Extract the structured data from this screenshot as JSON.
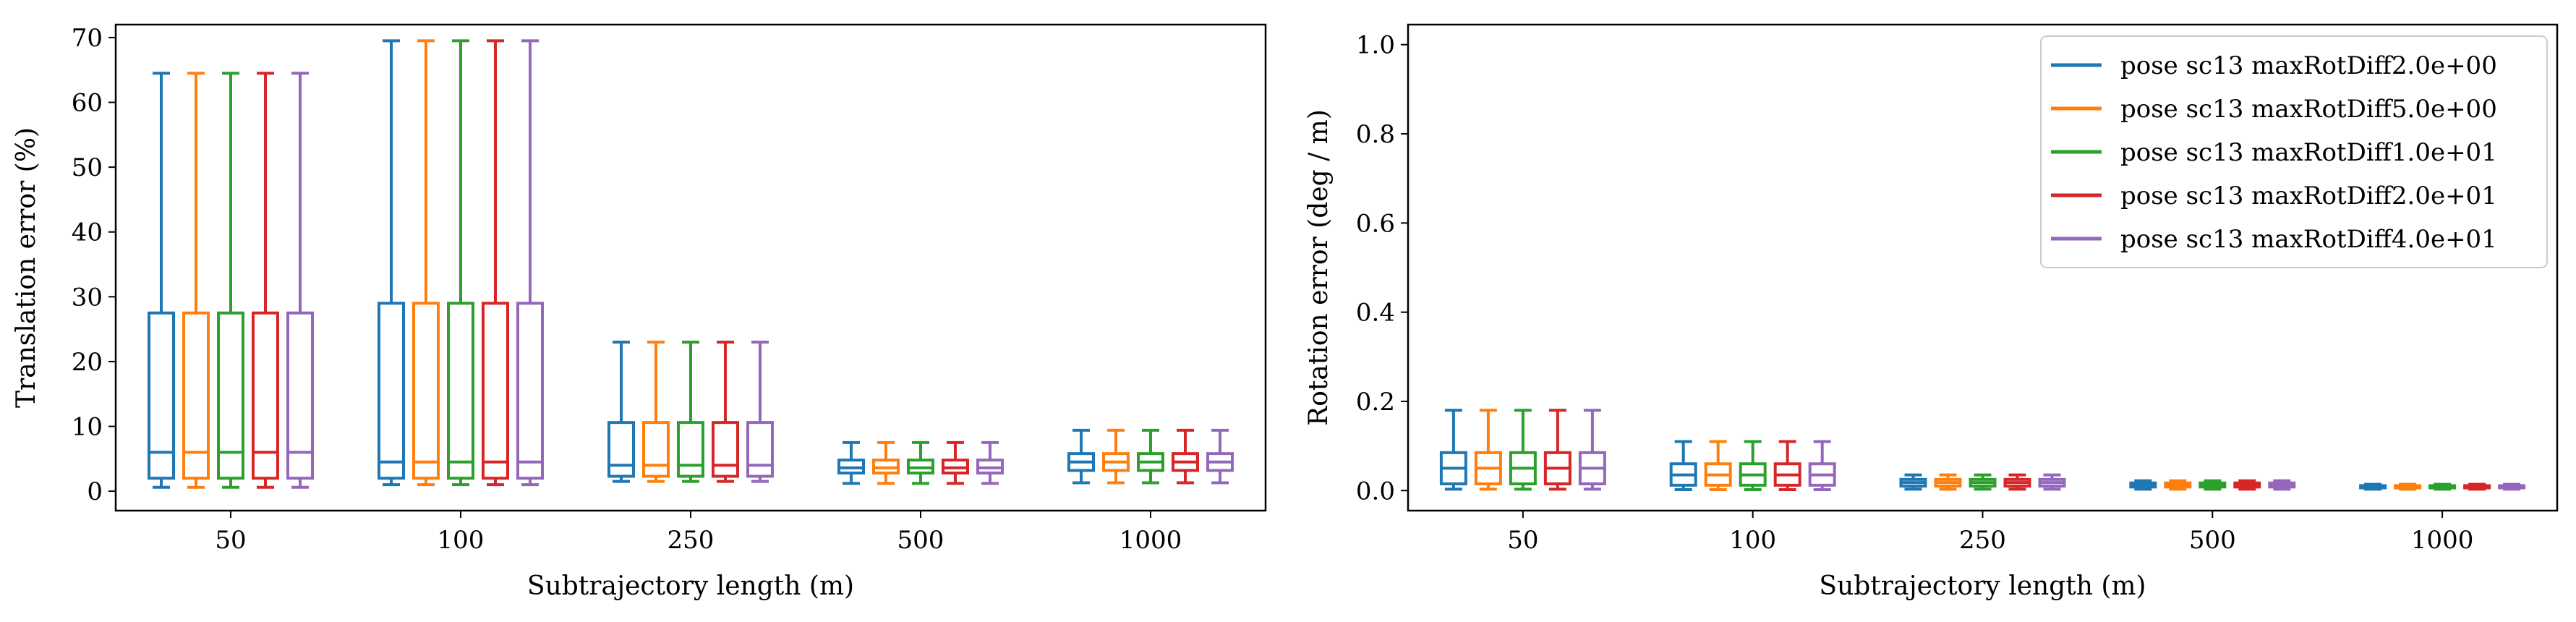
{
  "chart_data": [
    {
      "type": "box",
      "xlabel": "Subtrajectory length (m)",
      "ylabel": "Translation error (%)",
      "categories": [
        "50",
        "100",
        "250",
        "500",
        "1000"
      ],
      "ylim": [
        -3,
        72
      ],
      "yticks": [
        0,
        10,
        20,
        30,
        40,
        50,
        60,
        70
      ],
      "legend": false,
      "series": [
        {
          "name": "pose sc13 maxRotDiff2.0e+00",
          "color": "#1f77b4",
          "boxes": [
            {
              "whislo": 0.6,
              "q1": 2.0,
              "med": 6.0,
              "q3": 27.5,
              "whishi": 64.5
            },
            {
              "whislo": 1.0,
              "q1": 2.0,
              "med": 4.5,
              "q3": 29.0,
              "whishi": 69.5
            },
            {
              "whislo": 1.5,
              "q1": 2.3,
              "med": 4.0,
              "q3": 10.6,
              "whishi": 23.0
            },
            {
              "whislo": 1.2,
              "q1": 2.8,
              "med": 3.6,
              "q3": 4.8,
              "whishi": 7.5
            },
            {
              "whislo": 1.3,
              "q1": 3.2,
              "med": 4.5,
              "q3": 5.8,
              "whishi": 9.4
            }
          ]
        },
        {
          "name": "pose sc13 maxRotDiff5.0e+00",
          "color": "#ff7f0e",
          "boxes": [
            {
              "whislo": 0.6,
              "q1": 2.0,
              "med": 6.0,
              "q3": 27.5,
              "whishi": 64.5
            },
            {
              "whislo": 1.0,
              "q1": 2.0,
              "med": 4.5,
              "q3": 29.0,
              "whishi": 69.5
            },
            {
              "whislo": 1.5,
              "q1": 2.3,
              "med": 4.0,
              "q3": 10.6,
              "whishi": 23.0
            },
            {
              "whislo": 1.2,
              "q1": 2.8,
              "med": 3.6,
              "q3": 4.8,
              "whishi": 7.5
            },
            {
              "whislo": 1.3,
              "q1": 3.2,
              "med": 4.5,
              "q3": 5.8,
              "whishi": 9.4
            }
          ]
        },
        {
          "name": "pose sc13 maxRotDiff1.0e+01",
          "color": "#2ca02c",
          "boxes": [
            {
              "whislo": 0.6,
              "q1": 2.0,
              "med": 6.0,
              "q3": 27.5,
              "whishi": 64.5
            },
            {
              "whislo": 1.0,
              "q1": 2.0,
              "med": 4.5,
              "q3": 29.0,
              "whishi": 69.5
            },
            {
              "whislo": 1.5,
              "q1": 2.3,
              "med": 4.0,
              "q3": 10.6,
              "whishi": 23.0
            },
            {
              "whislo": 1.2,
              "q1": 2.8,
              "med": 3.6,
              "q3": 4.8,
              "whishi": 7.5
            },
            {
              "whislo": 1.3,
              "q1": 3.2,
              "med": 4.5,
              "q3": 5.8,
              "whishi": 9.4
            }
          ]
        },
        {
          "name": "pose sc13 maxRotDiff2.0e+01",
          "color": "#d62728",
          "boxes": [
            {
              "whislo": 0.6,
              "q1": 2.0,
              "med": 6.0,
              "q3": 27.5,
              "whishi": 64.5
            },
            {
              "whislo": 1.0,
              "q1": 2.0,
              "med": 4.5,
              "q3": 29.0,
              "whishi": 69.5
            },
            {
              "whislo": 1.5,
              "q1": 2.3,
              "med": 4.0,
              "q3": 10.6,
              "whishi": 23.0
            },
            {
              "whislo": 1.2,
              "q1": 2.8,
              "med": 3.6,
              "q3": 4.8,
              "whishi": 7.5
            },
            {
              "whislo": 1.3,
              "q1": 3.2,
              "med": 4.5,
              "q3": 5.8,
              "whishi": 9.4
            }
          ]
        },
        {
          "name": "pose sc13 maxRotDiff4.0e+01",
          "color": "#9467bd",
          "boxes": [
            {
              "whislo": 0.6,
              "q1": 2.0,
              "med": 6.0,
              "q3": 27.5,
              "whishi": 64.5
            },
            {
              "whislo": 1.0,
              "q1": 2.0,
              "med": 4.5,
              "q3": 29.0,
              "whishi": 69.5
            },
            {
              "whislo": 1.5,
              "q1": 2.3,
              "med": 4.0,
              "q3": 10.6,
              "whishi": 23.0
            },
            {
              "whislo": 1.2,
              "q1": 2.8,
              "med": 3.6,
              "q3": 4.8,
              "whishi": 7.5
            },
            {
              "whislo": 1.3,
              "q1": 3.2,
              "med": 4.5,
              "q3": 5.8,
              "whishi": 9.4
            }
          ]
        }
      ]
    },
    {
      "type": "box",
      "xlabel": "Subtrajectory length (m)",
      "ylabel": "Rotation error (deg / m)",
      "categories": [
        "50",
        "100",
        "250",
        "500",
        "1000"
      ],
      "ylim": [
        -0.045,
        1.045
      ],
      "yticks": [
        0.0,
        0.2,
        0.4,
        0.6,
        0.8,
        1.0
      ],
      "ytick_labels": [
        "0.0",
        "0.2",
        "0.4",
        "0.6",
        "0.8",
        "1.0"
      ],
      "legend": true,
      "legend_position": "top-right",
      "series": [
        {
          "name": "pose sc13 maxRotDiff2.0e+00",
          "color": "#1f77b4",
          "boxes": [
            {
              "whislo": 0.003,
              "q1": 0.015,
              "med": 0.05,
              "q3": 0.085,
              "whishi": 0.18
            },
            {
              "whislo": 0.002,
              "q1": 0.012,
              "med": 0.035,
              "q3": 0.06,
              "whishi": 0.11
            },
            {
              "whislo": 0.003,
              "q1": 0.01,
              "med": 0.018,
              "q3": 0.025,
              "whishi": 0.035
            },
            {
              "whislo": 0.003,
              "q1": 0.008,
              "med": 0.012,
              "q3": 0.017,
              "whishi": 0.022
            },
            {
              "whislo": 0.003,
              "q1": 0.006,
              "med": 0.009,
              "q3": 0.011,
              "whishi": 0.014
            }
          ]
        },
        {
          "name": "pose sc13 maxRotDiff5.0e+00",
          "color": "#ff7f0e",
          "boxes": [
            {
              "whislo": 0.003,
              "q1": 0.015,
              "med": 0.05,
              "q3": 0.085,
              "whishi": 0.18
            },
            {
              "whislo": 0.002,
              "q1": 0.012,
              "med": 0.035,
              "q3": 0.06,
              "whishi": 0.11
            },
            {
              "whislo": 0.003,
              "q1": 0.01,
              "med": 0.018,
              "q3": 0.025,
              "whishi": 0.035
            },
            {
              "whislo": 0.003,
              "q1": 0.008,
              "med": 0.012,
              "q3": 0.017,
              "whishi": 0.022
            },
            {
              "whislo": 0.003,
              "q1": 0.006,
              "med": 0.009,
              "q3": 0.011,
              "whishi": 0.014
            }
          ]
        },
        {
          "name": "pose sc13 maxRotDiff1.0e+01",
          "color": "#2ca02c",
          "boxes": [
            {
              "whislo": 0.003,
              "q1": 0.015,
              "med": 0.05,
              "q3": 0.085,
              "whishi": 0.18
            },
            {
              "whislo": 0.002,
              "q1": 0.012,
              "med": 0.035,
              "q3": 0.06,
              "whishi": 0.11
            },
            {
              "whislo": 0.003,
              "q1": 0.01,
              "med": 0.018,
              "q3": 0.025,
              "whishi": 0.035
            },
            {
              "whislo": 0.003,
              "q1": 0.008,
              "med": 0.012,
              "q3": 0.017,
              "whishi": 0.022
            },
            {
              "whislo": 0.003,
              "q1": 0.006,
              "med": 0.009,
              "q3": 0.011,
              "whishi": 0.014
            }
          ]
        },
        {
          "name": "pose sc13 maxRotDiff2.0e+01",
          "color": "#d62728",
          "boxes": [
            {
              "whislo": 0.003,
              "q1": 0.015,
              "med": 0.05,
              "q3": 0.085,
              "whishi": 0.18
            },
            {
              "whislo": 0.002,
              "q1": 0.012,
              "med": 0.035,
              "q3": 0.06,
              "whishi": 0.11
            },
            {
              "whislo": 0.003,
              "q1": 0.01,
              "med": 0.018,
              "q3": 0.025,
              "whishi": 0.035
            },
            {
              "whislo": 0.003,
              "q1": 0.008,
              "med": 0.012,
              "q3": 0.017,
              "whishi": 0.022
            },
            {
              "whislo": 0.003,
              "q1": 0.006,
              "med": 0.009,
              "q3": 0.011,
              "whishi": 0.014
            }
          ]
        },
        {
          "name": "pose sc13 maxRotDiff4.0e+01",
          "color": "#9467bd",
          "boxes": [
            {
              "whislo": 0.003,
              "q1": 0.015,
              "med": 0.05,
              "q3": 0.085,
              "whishi": 0.18
            },
            {
              "whislo": 0.002,
              "q1": 0.012,
              "med": 0.035,
              "q3": 0.06,
              "whishi": 0.11
            },
            {
              "whislo": 0.003,
              "q1": 0.01,
              "med": 0.018,
              "q3": 0.025,
              "whishi": 0.035
            },
            {
              "whislo": 0.003,
              "q1": 0.008,
              "med": 0.012,
              "q3": 0.017,
              "whishi": 0.022
            },
            {
              "whislo": 0.003,
              "q1": 0.006,
              "med": 0.009,
              "q3": 0.011,
              "whishi": 0.014
            }
          ]
        }
      ]
    }
  ]
}
